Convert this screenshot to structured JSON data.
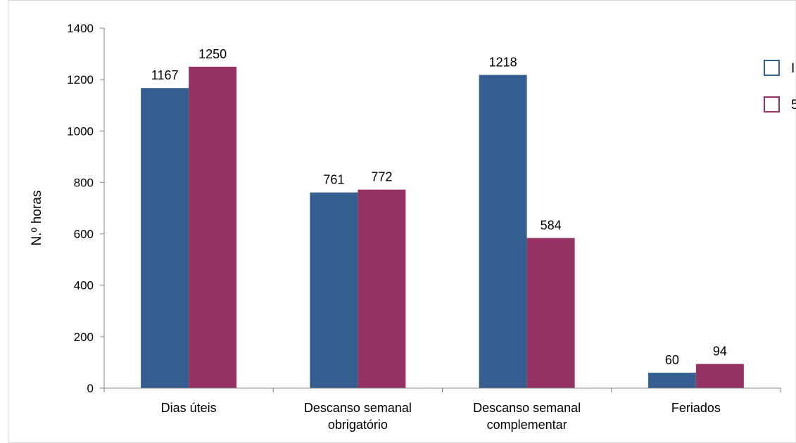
{
  "colors": {
    "series_0": "#365f91",
    "series_1": "#953263",
    "axis": "#868686",
    "frame": "#d9d9d9"
  },
  "chart_data": {
    "type": "bar",
    "ylabel": "N.º horas",
    "xlabel": "",
    "ylim": [
      0,
      1400
    ],
    "yticks": [
      0,
      200,
      400,
      600,
      800,
      1000,
      1200,
      1400
    ],
    "grid": false,
    "legend_position": "right",
    "categories": [
      [
        "Dias úteis"
      ],
      [
        "Descanso semanal",
        "obrigatório"
      ],
      [
        "Descanso semanal",
        "complementar"
      ],
      [
        "Feriados"
      ]
    ],
    "series": [
      {
        "values": [
          1167,
          761,
          1218,
          60
        ],
        "legend_text": "I"
      },
      {
        "values": [
          1250,
          772,
          584,
          94
        ],
        "legend_text": "5"
      }
    ]
  }
}
